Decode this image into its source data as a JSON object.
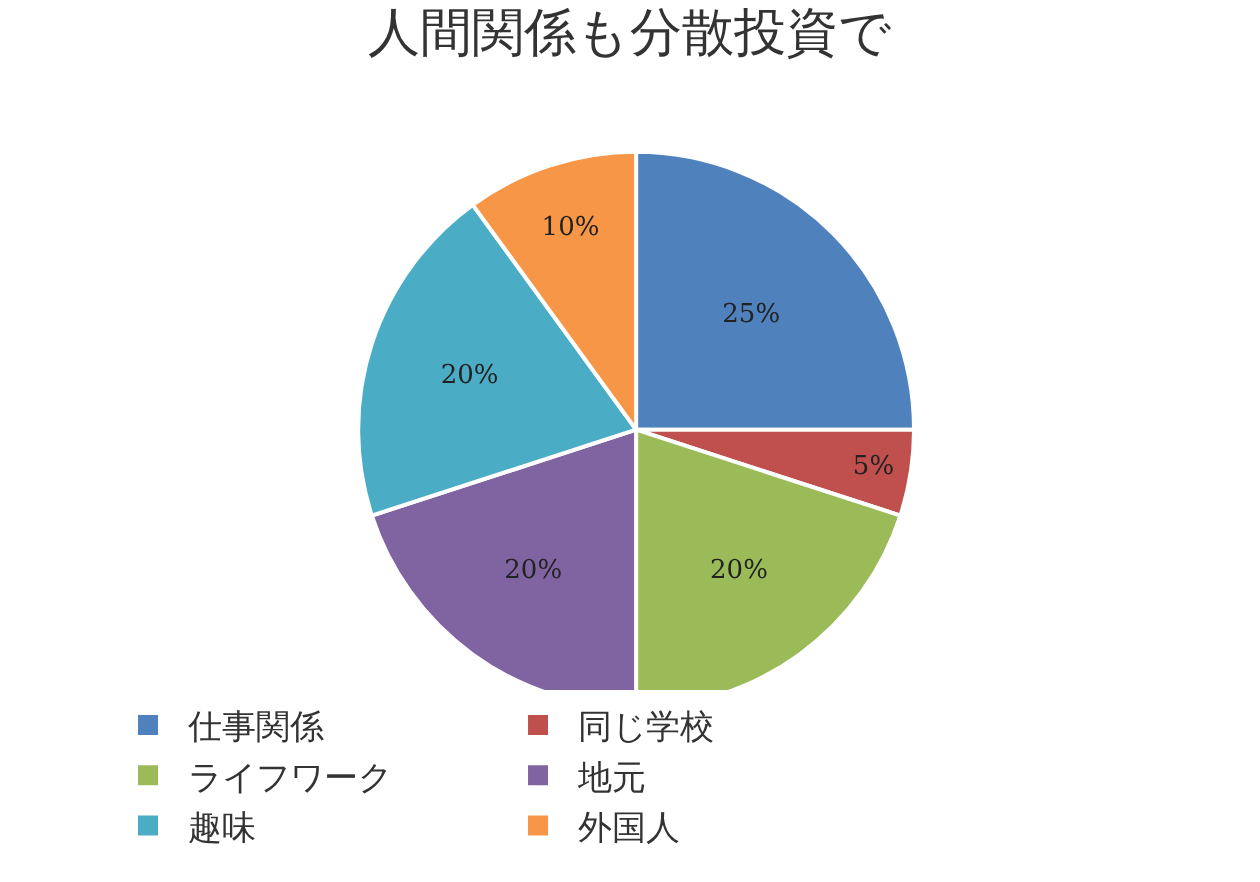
{
  "chart_data": {
    "type": "pie",
    "title": "人間関係も分散投資で",
    "categories": [
      "仕事関係",
      "同じ学校",
      "ライフワーク",
      "地元",
      "趣味",
      "外国人"
    ],
    "values": [
      25,
      5,
      20,
      20,
      20,
      10
    ],
    "value_labels": [
      "25%",
      "5%",
      "20%",
      "20%",
      "20%",
      "10%"
    ],
    "colors": [
      "#4f81bd",
      "#c0504d",
      "#9bbb59",
      "#8064a2",
      "#4bacc6",
      "#f79646"
    ],
    "legend": "bottom"
  }
}
